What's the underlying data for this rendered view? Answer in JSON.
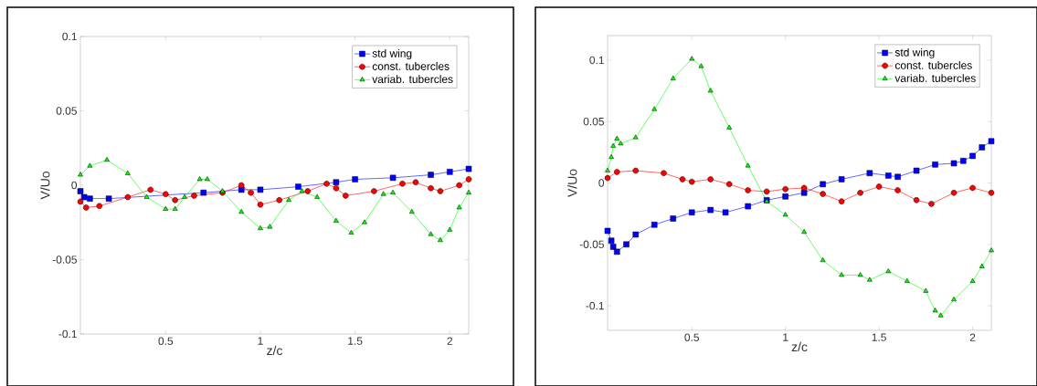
{
  "chart_data": [
    {
      "type": "line",
      "xlabel": "z/c",
      "ylabel": "V/Uo",
      "xlim": [
        0.05,
        2.1
      ],
      "ylim": [
        -0.1,
        0.1
      ],
      "xticks": [
        0.5,
        1,
        1.5,
        2
      ],
      "yticks": [
        -0.1,
        -0.05,
        0,
        0.05,
        0.1
      ],
      "legend": "top right",
      "grid": false,
      "series": [
        {
          "name": "std wing",
          "color": "#0000ff",
          "marker": "square",
          "x": [
            0.05,
            0.07,
            0.1,
            0.2,
            0.7,
            0.9,
            1.0,
            1.2,
            1.4,
            1.5,
            1.7,
            1.9,
            2.0,
            2.1
          ],
          "values": [
            -0.004,
            -0.008,
            -0.009,
            -0.009,
            -0.005,
            -0.003,
            -0.003,
            -0.001,
            0.002,
            0.004,
            0.005,
            0.007,
            0.009,
            0.011
          ]
        },
        {
          "name": "const. tubercles",
          "color": "#ff0000",
          "marker": "circle",
          "x": [
            0.05,
            0.08,
            0.15,
            0.3,
            0.42,
            0.5,
            0.55,
            0.65,
            0.8,
            0.9,
            0.95,
            1.0,
            1.1,
            1.25,
            1.35,
            1.4,
            1.45,
            1.6,
            1.75,
            1.82,
            1.9,
            1.95,
            2.05,
            2.1
          ],
          "values": [
            -0.011,
            -0.015,
            -0.014,
            -0.008,
            -0.003,
            -0.006,
            -0.01,
            -0.007,
            -0.005,
            0.0,
            -0.005,
            -0.013,
            -0.01,
            -0.004,
            0.001,
            -0.002,
            -0.007,
            -0.004,
            0.001,
            0.002,
            -0.002,
            -0.004,
            0.0,
            0.004
          ]
        },
        {
          "name": "variab. tubercles",
          "color": "#00ff00",
          "marker": "triangle",
          "x": [
            0.05,
            0.1,
            0.19,
            0.3,
            0.4,
            0.5,
            0.55,
            0.6,
            0.68,
            0.72,
            0.8,
            0.9,
            1.0,
            1.05,
            1.15,
            1.22,
            1.3,
            1.4,
            1.48,
            1.55,
            1.65,
            1.7,
            1.8,
            1.9,
            1.95,
            2.0,
            2.05,
            2.1
          ],
          "values": [
            0.007,
            0.013,
            0.017,
            0.008,
            -0.008,
            -0.016,
            -0.016,
            -0.008,
            0.004,
            0.004,
            -0.004,
            -0.018,
            -0.029,
            -0.028,
            -0.01,
            -0.004,
            -0.008,
            -0.024,
            -0.032,
            -0.025,
            -0.006,
            -0.005,
            -0.018,
            -0.033,
            -0.037,
            -0.03,
            -0.015,
            -0.005
          ]
        }
      ]
    },
    {
      "type": "line",
      "xlabel": "z/c",
      "ylabel": "V/Uo",
      "xlim": [
        0.05,
        2.1
      ],
      "ylim": [
        -0.12,
        0.12
      ],
      "xticks": [
        0.5,
        1,
        1.5,
        2
      ],
      "yticks": [
        -0.1,
        -0.05,
        0,
        0.05,
        0.1
      ],
      "legend": "top right",
      "grid": false,
      "series": [
        {
          "name": "std wing",
          "color": "#0000ff",
          "marker": "square",
          "x": [
            0.05,
            0.07,
            0.08,
            0.1,
            0.15,
            0.2,
            0.3,
            0.4,
            0.5,
            0.6,
            0.68,
            0.8,
            0.9,
            1.0,
            1.1,
            1.2,
            1.3,
            1.45,
            1.55,
            1.6,
            1.7,
            1.8,
            1.9,
            1.95,
            2.0,
            2.05,
            2.1
          ],
          "values": [
            -0.039,
            -0.047,
            -0.052,
            -0.056,
            -0.05,
            -0.042,
            -0.034,
            -0.029,
            -0.024,
            -0.022,
            -0.024,
            -0.019,
            -0.014,
            -0.011,
            -0.008,
            -0.001,
            0.003,
            0.008,
            0.006,
            0.005,
            0.01,
            0.015,
            0.016,
            0.018,
            0.022,
            0.029,
            0.034
          ]
        },
        {
          "name": "const. tubercles",
          "color": "#ff0000",
          "marker": "circle",
          "x": [
            0.05,
            0.1,
            0.2,
            0.35,
            0.45,
            0.5,
            0.6,
            0.7,
            0.8,
            0.9,
            1.0,
            1.1,
            1.2,
            1.3,
            1.4,
            1.5,
            1.6,
            1.7,
            1.78,
            1.9,
            2.0,
            2.1
          ],
          "values": [
            0.004,
            0.009,
            0.01,
            0.008,
            0.003,
            0.001,
            0.003,
            -0.001,
            -0.006,
            -0.007,
            -0.005,
            -0.004,
            -0.009,
            -0.015,
            -0.008,
            -0.003,
            -0.006,
            -0.014,
            -0.017,
            -0.008,
            -0.004,
            -0.008
          ]
        },
        {
          "name": "variab. tubercles",
          "color": "#00ff00",
          "marker": "triangle",
          "x": [
            0.05,
            0.07,
            0.08,
            0.1,
            0.12,
            0.2,
            0.3,
            0.4,
            0.5,
            0.55,
            0.6,
            0.7,
            0.8,
            0.9,
            1.0,
            1.1,
            1.2,
            1.3,
            1.4,
            1.45,
            1.55,
            1.65,
            1.75,
            1.8,
            1.83,
            1.9,
            2.0,
            2.05,
            2.1
          ],
          "values": [
            0.01,
            0.021,
            0.03,
            0.036,
            0.032,
            0.037,
            0.06,
            0.085,
            0.101,
            0.095,
            0.075,
            0.045,
            0.014,
            -0.015,
            -0.026,
            -0.04,
            -0.063,
            -0.075,
            -0.075,
            -0.079,
            -0.072,
            -0.08,
            -0.088,
            -0.104,
            -0.108,
            -0.095,
            -0.08,
            -0.068,
            -0.055
          ]
        }
      ]
    }
  ]
}
